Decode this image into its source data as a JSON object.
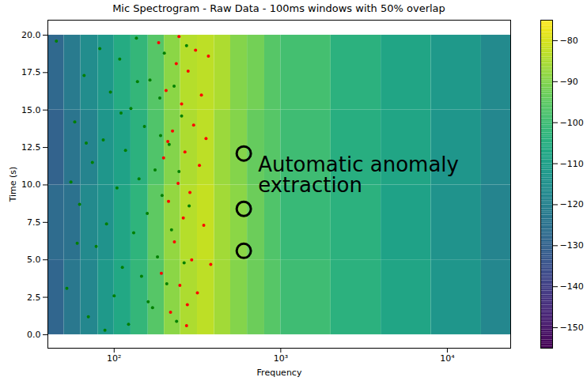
{
  "chart_data": {
    "type": "heatmap",
    "title": "Mic Spectrogram - Raw Data - 100ms windows with 50% overlap",
    "x_label": "Frequency",
    "y_label": "Time (s)",
    "log": "x",
    "xlim": [
      40,
      24000
    ],
    "xticks": [
      {
        "value": 100,
        "label": "10²"
      },
      {
        "value": 1000,
        "label": "10³"
      },
      {
        "value": 10000,
        "label": "10⁴"
      }
    ],
    "ylim": [
      -0.9,
      21
    ],
    "yticks": [
      {
        "value": 0,
        "label": "0.0"
      },
      {
        "value": 2.5,
        "label": "2.5"
      },
      {
        "value": 5,
        "label": "5.0"
      },
      {
        "value": 7.5,
        "label": "7.5"
      },
      {
        "value": 10,
        "label": "10.0"
      },
      {
        "value": 12.5,
        "label": "12.5"
      },
      {
        "value": 15,
        "label": "15.0"
      },
      {
        "value": 17.5,
        "label": "17.5"
      },
      {
        "value": 20,
        "label": "20.0"
      }
    ],
    "heatmap": {
      "freq_edges": [
        40,
        50,
        63,
        80,
        100,
        126,
        160,
        200,
        250,
        316,
        400,
        500,
        630,
        800,
        1000,
        2000,
        4000,
        8000,
        16000,
        24000
      ],
      "time_edges": [
        0,
        5,
        10,
        15,
        20
      ],
      "values": [
        [
          -129,
          -123,
          -118,
          -112,
          -107,
          -102,
          -96,
          -89,
          -85,
          -83,
          -86,
          -90,
          -93,
          -96,
          -100,
          -104,
          -108,
          -113,
          -118
        ],
        [
          -127,
          -125,
          -117,
          -114,
          -108,
          -103,
          -95,
          -88,
          -84,
          -82,
          -86,
          -89,
          -93,
          -97,
          -101,
          -104,
          -109,
          -114,
          -119
        ],
        [
          -130,
          -124,
          -119,
          -113,
          -109,
          -104,
          -97,
          -90,
          -85,
          -83,
          -87,
          -90,
          -94,
          -96,
          -100,
          -105,
          -108,
          -113,
          -118
        ],
        [
          -128,
          -122,
          -116,
          -112,
          -106,
          -102,
          -96,
          -89,
          -84,
          -83,
          -85,
          -90,
          -92,
          -96,
          -99,
          -104,
          -108,
          -112,
          -117
        ]
      ]
    },
    "colorbar": {
      "range": [
        -155,
        -75
      ],
      "ticks": [
        -80,
        -90,
        -100,
        -110,
        -120,
        -130,
        -140,
        -150
      ]
    },
    "series": [
      {
        "color": "green",
        "marker": "dot",
        "x": [
          45,
          52,
          58,
          62,
          66,
          70,
          74,
          78,
          82,
          86,
          90,
          95,
          100,
          104,
          108,
          112,
          117,
          122,
          126,
          131,
          136,
          141,
          146,
          152,
          158,
          164,
          170,
          176,
          182,
          188,
          194,
          200,
          207,
          214,
          221,
          229,
          237,
          245,
          254,
          263,
          272,
          282,
          60,
          68,
          88,
          110,
          138,
          160,
          190,
          55
        ],
        "y": [
          19.6,
          3.1,
          14.2,
          8.7,
          17.3,
          1.2,
          11.5,
          5.9,
          19.1,
          13.0,
          7.4,
          16.2,
          2.6,
          9.8,
          18.4,
          4.5,
          12.3,
          0.7,
          15.1,
          6.8,
          19.8,
          10.4,
          3.9,
          13.9,
          8.1,
          17.0,
          1.8,
          11.0,
          5.2,
          15.8,
          9.3,
          18.8,
          3.4,
          12.7,
          7.0,
          16.6,
          0.9,
          10.9,
          14.6,
          4.8,
          19.3,
          8.6,
          6.1,
          12.8,
          0.3,
          14.8,
          16.9,
          2.2,
          13.3,
          10.2
        ]
      },
      {
        "color": "red",
        "marker": "dot",
        "x": [
          185,
          192,
          198,
          205,
          212,
          218,
          224,
          230,
          236,
          242,
          248,
          254,
          260,
          266,
          272,
          278,
          285,
          292,
          300,
          308,
          316,
          325,
          334,
          345,
          356,
          368,
          380,
          210,
          245,
          275
        ],
        "y": [
          19.5,
          4.1,
          11.8,
          16.3,
          8.9,
          1.5,
          13.6,
          6.2,
          18.1,
          10.1,
          3.3,
          15.4,
          7.8,
          12.2,
          0.6,
          17.6,
          9.5,
          5.0,
          14.0,
          19.0,
          2.8,
          11.3,
          16.0,
          7.3,
          13.1,
          18.6,
          4.7,
          12.9,
          19.9,
          2.0
        ]
      }
    ],
    "annotation": {
      "text": "Automatic anomaly extraction",
      "x": [
        600,
        600,
        600
      ],
      "y": [
        12.1,
        8.4,
        5.6
      ]
    }
  }
}
